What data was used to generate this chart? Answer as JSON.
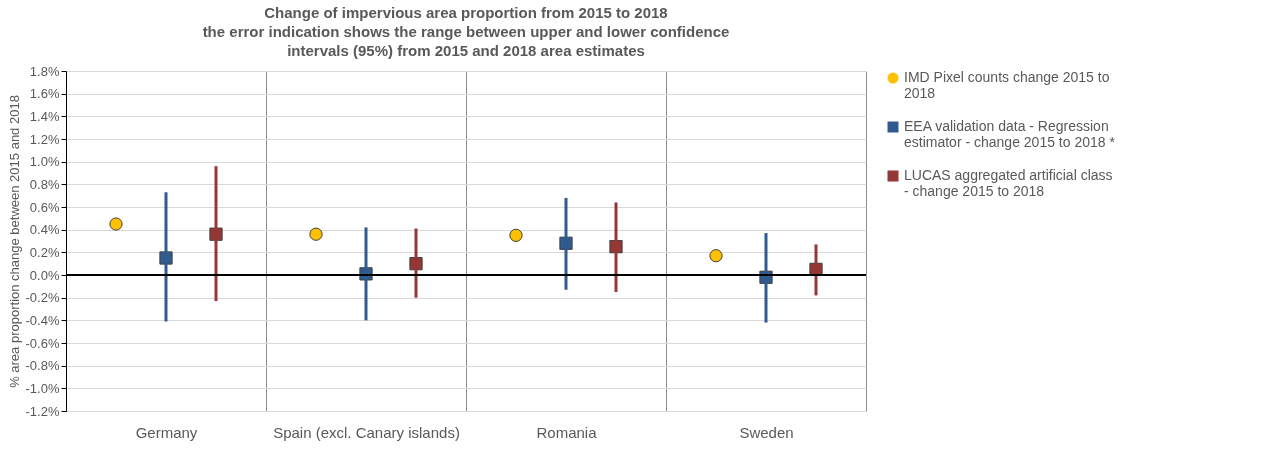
{
  "chart_data": {
    "type": "scatter",
    "title": "Change of impervious area proportion from 2015 to 2018\nthe error indication shows the range between upper and lower confidence\nintervals (95%) from 2015 and 2018 area estimates",
    "ylabel": "% area proportion change between 2015 and 2018",
    "categories": [
      "Germany",
      "Spain (excl. Canary islands)",
      "Romania",
      "Sweden"
    ],
    "series": [
      {
        "name": "IMD Pixel counts change 2015 to 2018",
        "color": "#ffc000",
        "marker": "circle",
        "values": [
          0.45,
          0.36,
          0.35,
          0.17
        ]
      },
      {
        "name": "EEA validation data - Regression estimator - change 2015 to 2018 *",
        "color": "#2f5b8f",
        "marker": "square",
        "values": [
          0.15,
          0.01,
          0.28,
          -0.02
        ],
        "errors": [
          [
            -0.41,
            0.73
          ],
          [
            -0.4,
            0.42
          ],
          [
            -0.13,
            0.68
          ],
          [
            -0.42,
            0.37
          ]
        ]
      },
      {
        "name": "LUCAS aggregated artificial class - change 2015 to 2018",
        "color": "#953735",
        "marker": "square",
        "values": [
          0.36,
          0.1,
          0.25,
          0.05
        ],
        "errors": [
          [
            -0.23,
            0.96
          ],
          [
            -0.2,
            0.41
          ],
          [
            -0.15,
            0.64
          ],
          [
            -0.18,
            0.27
          ]
        ]
      }
    ],
    "ylim": [
      -1.2,
      1.8
    ],
    "yticks": [
      {
        "value": -1.2,
        "label": "-1.2%"
      },
      {
        "value": -1.0,
        "label": "-1.0%"
      },
      {
        "value": -0.8,
        "label": "-0.8%"
      },
      {
        "value": -0.6,
        "label": "-0.6%"
      },
      {
        "value": -0.4,
        "label": "-0.4%"
      },
      {
        "value": -0.2,
        "label": "-0.2%"
      },
      {
        "value": 0,
        "label": "0.0%"
      },
      {
        "value": 0.2,
        "label": "0.2%"
      },
      {
        "value": 0.4,
        "label": "0.4%"
      },
      {
        "value": 0.6,
        "label": "0.6%"
      },
      {
        "value": 0.8,
        "label": "0.8%"
      },
      {
        "value": 1.0,
        "label": "1.0%"
      },
      {
        "value": 1.2,
        "label": "1.2%"
      },
      {
        "value": 1.4,
        "label": "1.4%"
      },
      {
        "value": 1.6,
        "label": "1.6%"
      },
      {
        "value": 1.8,
        "label": "1.8%"
      }
    ],
    "ref_lines": [
      {
        "axis": "y",
        "value": 0,
        "color": "#000000"
      }
    ],
    "grid": true,
    "legend": "right"
  }
}
